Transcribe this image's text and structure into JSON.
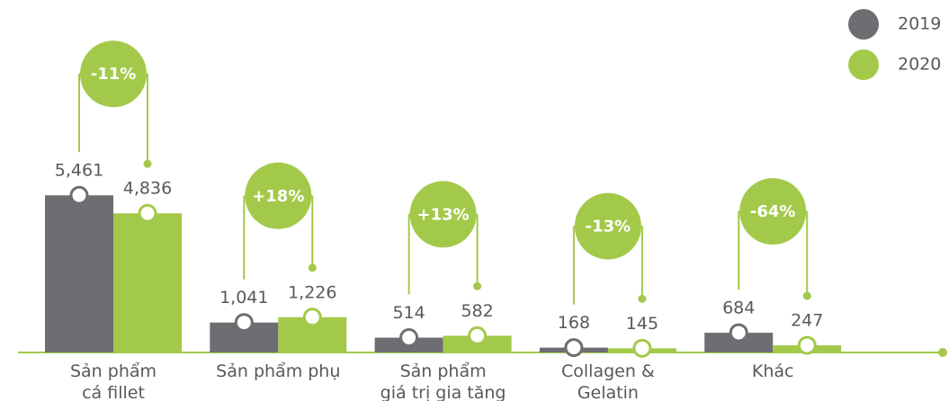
{
  "chart_data": {
    "type": "bar",
    "categories": [
      "Sản phẩm\ncá fillet",
      "Sản phẩm phụ",
      "Sản phẩm\ngiá trị gia tăng",
      "Collagen &\nGelatin",
      "Khác"
    ],
    "series": [
      {
        "name": "2019",
        "color": "#6d6e71",
        "values": [
          5461,
          1041,
          514,
          168,
          684
        ],
        "value_labels": [
          "5,461",
          "1,041",
          "514",
          "168",
          "684"
        ]
      },
      {
        "name": "2020",
        "color": "#a3c94a",
        "values": [
          4836,
          1226,
          582,
          145,
          247
        ],
        "value_labels": [
          "4,836",
          "1,226",
          "582",
          "145",
          "247"
        ]
      }
    ],
    "change_labels": [
      "-11%",
      "+18%",
      "+13%",
      "-13%",
      "-64%"
    ],
    "ylim": [
      0,
      6000
    ],
    "legend": "top-right"
  }
}
